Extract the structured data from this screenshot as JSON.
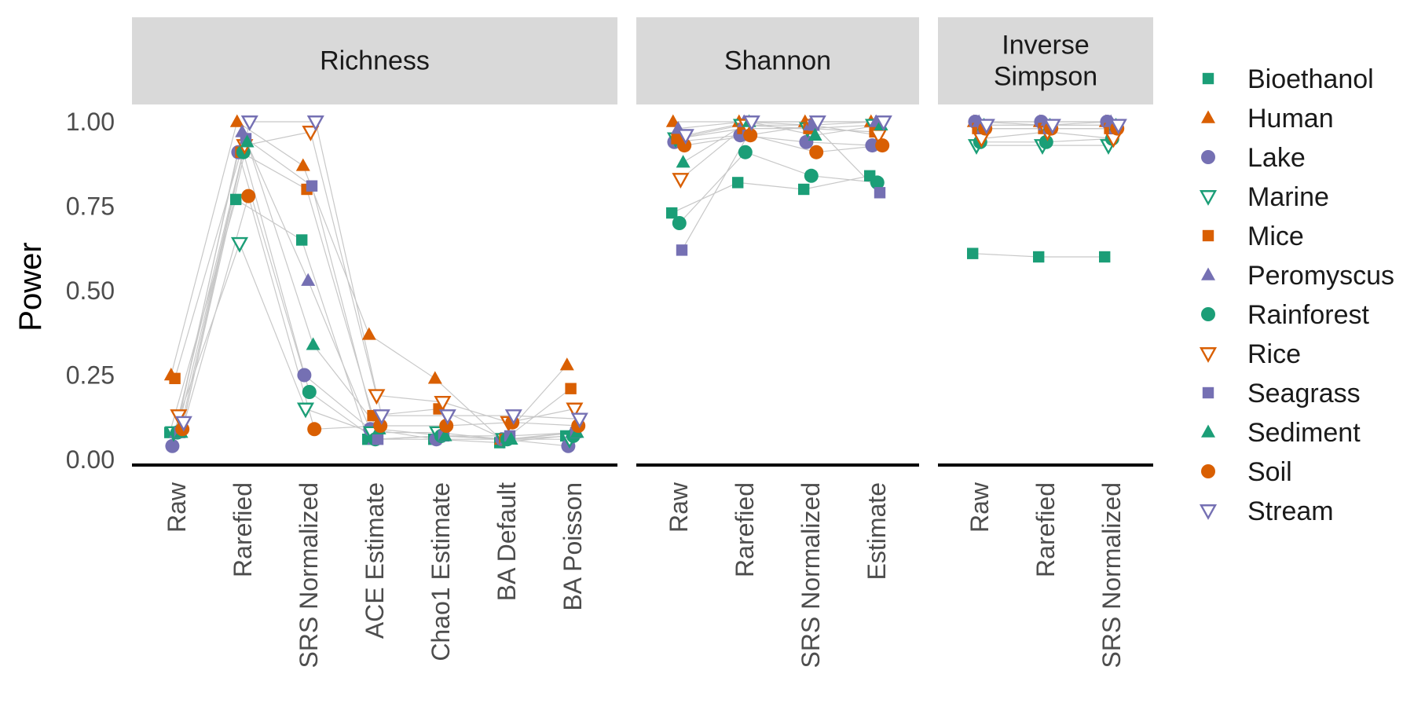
{
  "chart_data": {
    "type": "scatter",
    "ylabel": "Power",
    "ylim": [
      0,
      1
    ],
    "yticks": [
      0,
      0.25,
      0.5,
      0.75,
      1.0
    ],
    "ytick_labels": [
      "0.00",
      "0.25",
      "0.50",
      "0.75",
      "1.00"
    ],
    "connect_lines": true,
    "legend_position": "right",
    "panels": [
      {
        "title": "Richness",
        "categories": [
          "Raw",
          "Rarefied",
          "SRS Normalized",
          "ACE Estimate",
          "Chao1 Estimate",
          "BA Default",
          "BA Poisson"
        ],
        "series": [
          {
            "name": "Bioethanol",
            "values": [
              0.08,
              0.77,
              0.65,
              0.06,
              0.06,
              0.05,
              0.07
            ]
          },
          {
            "name": "Human",
            "values": [
              0.25,
              1.0,
              0.87,
              0.37,
              0.24,
              0.06,
              0.28
            ]
          },
          {
            "name": "Lake",
            "values": [
              0.04,
              0.91,
              0.25,
              0.09,
              0.06,
              0.06,
              0.04
            ]
          },
          {
            "name": "Marine",
            "values": [
              0.08,
              0.64,
              0.15,
              0.08,
              0.08,
              0.06,
              0.06
            ]
          },
          {
            "name": "Mice",
            "values": [
              0.24,
              0.91,
              0.8,
              0.13,
              0.15,
              0.06,
              0.21
            ]
          },
          {
            "name": "Peromyscus",
            "values": [
              0.08,
              0.97,
              0.53,
              0.06,
              0.07,
              0.06,
              0.08
            ]
          },
          {
            "name": "Rainforest",
            "values": [
              0.08,
              0.91,
              0.2,
              0.06,
              0.07,
              0.06,
              0.07
            ]
          },
          {
            "name": "Rice",
            "values": [
              0.13,
              0.93,
              0.97,
              0.19,
              0.17,
              0.11,
              0.15
            ]
          },
          {
            "name": "Seagrass",
            "values": [
              0.08,
              0.95,
              0.81,
              0.06,
              0.07,
              0.07,
              0.08
            ]
          },
          {
            "name": "Sediment",
            "values": [
              0.08,
              0.94,
              0.34,
              0.09,
              0.07,
              0.06,
              0.08
            ]
          },
          {
            "name": "Soil",
            "values": [
              0.09,
              0.78,
              0.09,
              0.1,
              0.1,
              0.11,
              0.1
            ]
          },
          {
            "name": "Stream",
            "values": [
              0.11,
              1.0,
              1.0,
              0.13,
              0.13,
              0.13,
              0.12
            ]
          }
        ]
      },
      {
        "title": "Shannon",
        "categories": [
          "Raw",
          "Rarefied",
          "SRS Normalized",
          "Estimate"
        ],
        "series": [
          {
            "name": "Bioethanol",
            "values": [
              0.73,
              0.82,
              0.8,
              0.84
            ]
          },
          {
            "name": "Human",
            "values": [
              1.0,
              1.0,
              1.0,
              1.0
            ]
          },
          {
            "name": "Lake",
            "values": [
              0.94,
              0.96,
              0.94,
              0.93
            ]
          },
          {
            "name": "Marine",
            "values": [
              0.95,
              0.99,
              0.98,
              0.99
            ]
          },
          {
            "name": "Mice",
            "values": [
              0.95,
              0.98,
              0.98,
              0.97
            ]
          },
          {
            "name": "Peromyscus",
            "values": [
              0.98,
              1.0,
              0.99,
              1.0
            ]
          },
          {
            "name": "Rainforest",
            "values": [
              0.7,
              0.91,
              0.84,
              0.82
            ]
          },
          {
            "name": "Rice",
            "values": [
              0.83,
              0.99,
              0.99,
              0.96
            ]
          },
          {
            "name": "Seagrass",
            "values": [
              0.62,
              0.96,
              0.99,
              0.79
            ]
          },
          {
            "name": "Sediment",
            "values": [
              0.88,
              1.0,
              0.96,
              0.99
            ]
          },
          {
            "name": "Soil",
            "values": [
              0.93,
              0.96,
              0.91,
              0.93
            ]
          },
          {
            "name": "Stream",
            "values": [
              0.96,
              1.0,
              1.0,
              1.0
            ]
          }
        ]
      },
      {
        "title": "Inverse Simpson",
        "title_lines": [
          "Inverse",
          "Simpson"
        ],
        "categories": [
          "Raw",
          "Rarefied",
          "SRS Normalized"
        ],
        "series": [
          {
            "name": "Bioethanol",
            "values": [
              0.61,
              0.6,
              0.6
            ]
          },
          {
            "name": "Human",
            "values": [
              1.0,
              1.0,
              1.0
            ]
          },
          {
            "name": "Lake",
            "values": [
              1.0,
              1.0,
              1.0
            ]
          },
          {
            "name": "Marine",
            "values": [
              0.93,
              0.93,
              0.93
            ]
          },
          {
            "name": "Mice",
            "values": [
              0.98,
              0.98,
              0.98
            ]
          },
          {
            "name": "Peromyscus",
            "values": [
              1.0,
              0.99,
              1.0
            ]
          },
          {
            "name": "Rainforest",
            "values": [
              0.94,
              0.94,
              0.95
            ]
          },
          {
            "name": "Rice",
            "values": [
              0.95,
              0.97,
              0.95
            ]
          },
          {
            "name": "Seagrass",
            "values": [
              0.98,
              0.98,
              0.98
            ]
          },
          {
            "name": "Sediment",
            "values": [
              0.99,
              0.99,
              0.99
            ]
          },
          {
            "name": "Soil",
            "values": [
              0.98,
              0.98,
              0.98
            ]
          },
          {
            "name": "Stream",
            "values": [
              0.99,
              0.99,
              0.99
            ]
          }
        ]
      }
    ],
    "legend": [
      {
        "name": "Bioethanol",
        "shape": "square",
        "color": "#1b9e77",
        "filled": true
      },
      {
        "name": "Human",
        "shape": "triangle-up",
        "color": "#d95f02",
        "filled": true
      },
      {
        "name": "Lake",
        "shape": "circle",
        "color": "#7570b3",
        "filled": true
      },
      {
        "name": "Marine",
        "shape": "triangle-down",
        "color": "#1b9e77",
        "filled": false
      },
      {
        "name": "Mice",
        "shape": "square",
        "color": "#d95f02",
        "filled": true
      },
      {
        "name": "Peromyscus",
        "shape": "triangle-up",
        "color": "#7570b3",
        "filled": true
      },
      {
        "name": "Rainforest",
        "shape": "circle",
        "color": "#1b9e77",
        "filled": true
      },
      {
        "name": "Rice",
        "shape": "triangle-down",
        "color": "#d95f02",
        "filled": false
      },
      {
        "name": "Seagrass",
        "shape": "square",
        "color": "#7570b3",
        "filled": true
      },
      {
        "name": "Sediment",
        "shape": "triangle-up",
        "color": "#1b9e77",
        "filled": true
      },
      {
        "name": "Soil",
        "shape": "circle",
        "color": "#d95f02",
        "filled": true
      },
      {
        "name": "Stream",
        "shape": "triangle-down",
        "color": "#7570b3",
        "filled": false
      }
    ],
    "colors": {
      "strip_background": "#d9d9d9",
      "connector_line": "#c8c8c8",
      "axis_line": "#000000"
    }
  }
}
